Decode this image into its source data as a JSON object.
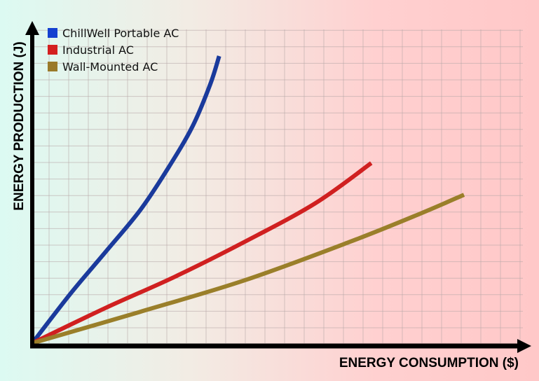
{
  "chart_data": {
    "type": "line",
    "title": "",
    "xlabel": "ENERGY CONSUMPTION ($)",
    "ylabel": "ENERGY PRODUCTION (J)",
    "xlim": [
      0,
      100
    ],
    "ylim": [
      0,
      100
    ],
    "grid": true,
    "legend_position": "top-left",
    "series": [
      {
        "name": "ChillWell Portable AC",
        "color": "#1a3a9c",
        "legend_color": "#1440d0",
        "x": [
          0,
          7.7,
          14.9,
          22,
          27.7,
          32.7,
          36.3,
          38.1
        ],
        "y": [
          0,
          15.6,
          29,
          42.4,
          55.8,
          69.2,
          82.6,
          91.5
        ]
      },
      {
        "name": "Industrial AC",
        "color": "#d02020",
        "legend_color": "#d42020",
        "x": [
          0,
          14.9,
          29.1,
          43.4,
          57.7,
          69.1
        ],
        "y": [
          0,
          11.2,
          21.2,
          32.4,
          44.6,
          57.4
        ]
      },
      {
        "name": "Wall-Mounted AC",
        "color": "#9a7f2a",
        "legend_color": "#9a7a2a",
        "x": [
          0,
          22,
          43.4,
          64.9,
          79.1,
          88
        ],
        "y": [
          0,
          10,
          20.1,
          32.4,
          41.3,
          47.3
        ]
      }
    ]
  }
}
